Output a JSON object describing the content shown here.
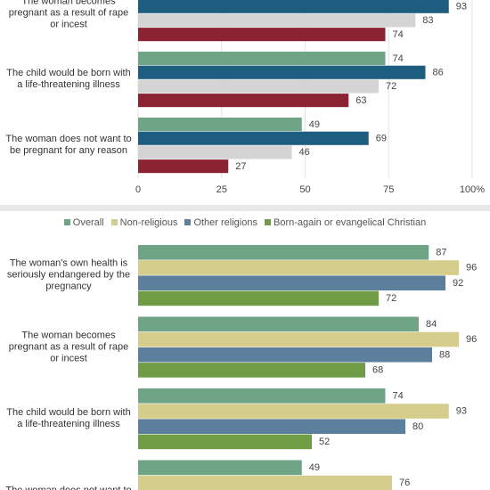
{
  "chart_data": [
    {
      "type": "bar",
      "categories": [
        "The woman becomes pregnant as a result of rape or incest",
        "The child would be born with a life-threatening illness",
        "The woman does not want to be pregnant for any reason"
      ],
      "series": [
        {
          "color": "#70a487",
          "values": [
            null,
            74,
            49
          ]
        },
        {
          "color": "#1d5d80",
          "values": [
            93,
            86,
            69
          ]
        },
        {
          "color": "#d4d4d4",
          "values": [
            83,
            72,
            46
          ]
        },
        {
          "color": "#8c2333",
          "values": [
            74,
            63,
            27
          ]
        }
      ],
      "xlim": [
        0,
        100
      ],
      "xticks": [
        0,
        25,
        50,
        75,
        {
          "value": 100,
          "label": "100%"
        }
      ],
      "grid": true
    },
    {
      "type": "bar",
      "categories": [
        "The woman's own health is seriously endangered by the pregnancy",
        "The woman becomes pregnant as a result of rape or incest",
        "The child would be born with a life-threatening illness",
        "The woman does not want to"
      ],
      "series": [
        {
          "name": "Overall",
          "color": "#70a487",
          "values": [
            87,
            84,
            74,
            49
          ]
        },
        {
          "name": "Non-religious",
          "color": "#d5cd8b",
          "values": [
            96,
            96,
            93,
            76
          ]
        },
        {
          "name": "Other religions",
          "color": "#5b7f9c",
          "values": [
            92,
            88,
            80,
            null
          ]
        },
        {
          "name": "Born-again or evangelical Christian",
          "color": "#6f9c45",
          "values": [
            72,
            68,
            52,
            null
          ]
        }
      ],
      "xlim": [
        0,
        100
      ],
      "grid": false
    }
  ]
}
